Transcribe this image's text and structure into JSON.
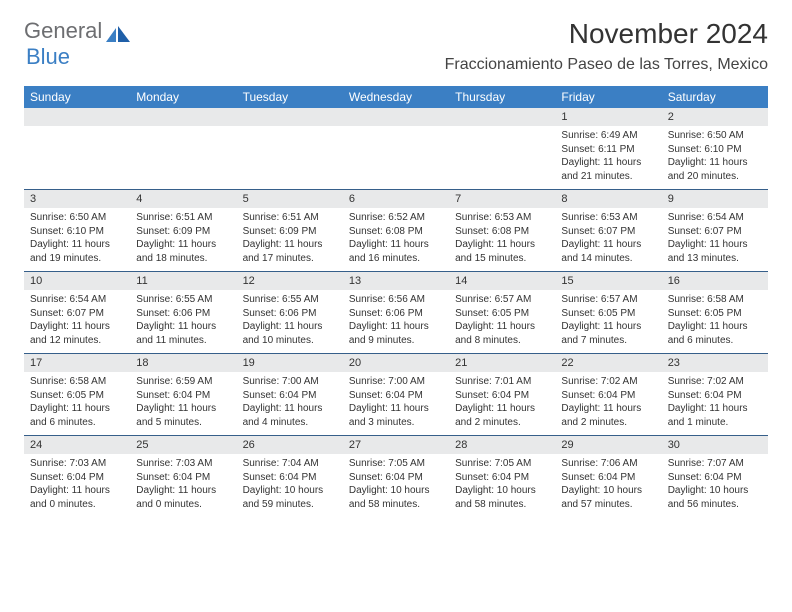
{
  "brand": {
    "gray": "General",
    "blue": "Blue"
  },
  "title": "November 2024",
  "location": "Fraccionamiento Paseo de las Torres, Mexico",
  "colors": {
    "headerBg": "#3b7fc4",
    "headerText": "#ffffff",
    "dayBarBg": "#e8e9ea",
    "dayBarBorder": "#365f8a",
    "bodyText": "#333333",
    "logoGray": "#6d6e71",
    "logoBlue": "#3b7fc4",
    "pageBg": "#ffffff"
  },
  "dayHeaders": [
    "Sunday",
    "Monday",
    "Tuesday",
    "Wednesday",
    "Thursday",
    "Friday",
    "Saturday"
  ],
  "weeks": [
    [
      null,
      null,
      null,
      null,
      null,
      {
        "n": "1",
        "sr": "6:49 AM",
        "ss": "6:11 PM",
        "dl": "11 hours and 21 minutes."
      },
      {
        "n": "2",
        "sr": "6:50 AM",
        "ss": "6:10 PM",
        "dl": "11 hours and 20 minutes."
      }
    ],
    [
      {
        "n": "3",
        "sr": "6:50 AM",
        "ss": "6:10 PM",
        "dl": "11 hours and 19 minutes."
      },
      {
        "n": "4",
        "sr": "6:51 AM",
        "ss": "6:09 PM",
        "dl": "11 hours and 18 minutes."
      },
      {
        "n": "5",
        "sr": "6:51 AM",
        "ss": "6:09 PM",
        "dl": "11 hours and 17 minutes."
      },
      {
        "n": "6",
        "sr": "6:52 AM",
        "ss": "6:08 PM",
        "dl": "11 hours and 16 minutes."
      },
      {
        "n": "7",
        "sr": "6:53 AM",
        "ss": "6:08 PM",
        "dl": "11 hours and 15 minutes."
      },
      {
        "n": "8",
        "sr": "6:53 AM",
        "ss": "6:07 PM",
        "dl": "11 hours and 14 minutes."
      },
      {
        "n": "9",
        "sr": "6:54 AM",
        "ss": "6:07 PM",
        "dl": "11 hours and 13 minutes."
      }
    ],
    [
      {
        "n": "10",
        "sr": "6:54 AM",
        "ss": "6:07 PM",
        "dl": "11 hours and 12 minutes."
      },
      {
        "n": "11",
        "sr": "6:55 AM",
        "ss": "6:06 PM",
        "dl": "11 hours and 11 minutes."
      },
      {
        "n": "12",
        "sr": "6:55 AM",
        "ss": "6:06 PM",
        "dl": "11 hours and 10 minutes."
      },
      {
        "n": "13",
        "sr": "6:56 AM",
        "ss": "6:06 PM",
        "dl": "11 hours and 9 minutes."
      },
      {
        "n": "14",
        "sr": "6:57 AM",
        "ss": "6:05 PM",
        "dl": "11 hours and 8 minutes."
      },
      {
        "n": "15",
        "sr": "6:57 AM",
        "ss": "6:05 PM",
        "dl": "11 hours and 7 minutes."
      },
      {
        "n": "16",
        "sr": "6:58 AM",
        "ss": "6:05 PM",
        "dl": "11 hours and 6 minutes."
      }
    ],
    [
      {
        "n": "17",
        "sr": "6:58 AM",
        "ss": "6:05 PM",
        "dl": "11 hours and 6 minutes."
      },
      {
        "n": "18",
        "sr": "6:59 AM",
        "ss": "6:04 PM",
        "dl": "11 hours and 5 minutes."
      },
      {
        "n": "19",
        "sr": "7:00 AM",
        "ss": "6:04 PM",
        "dl": "11 hours and 4 minutes."
      },
      {
        "n": "20",
        "sr": "7:00 AM",
        "ss": "6:04 PM",
        "dl": "11 hours and 3 minutes."
      },
      {
        "n": "21",
        "sr": "7:01 AM",
        "ss": "6:04 PM",
        "dl": "11 hours and 2 minutes."
      },
      {
        "n": "22",
        "sr": "7:02 AM",
        "ss": "6:04 PM",
        "dl": "11 hours and 2 minutes."
      },
      {
        "n": "23",
        "sr": "7:02 AM",
        "ss": "6:04 PM",
        "dl": "11 hours and 1 minute."
      }
    ],
    [
      {
        "n": "24",
        "sr": "7:03 AM",
        "ss": "6:04 PM",
        "dl": "11 hours and 0 minutes."
      },
      {
        "n": "25",
        "sr": "7:03 AM",
        "ss": "6:04 PM",
        "dl": "11 hours and 0 minutes."
      },
      {
        "n": "26",
        "sr": "7:04 AM",
        "ss": "6:04 PM",
        "dl": "10 hours and 59 minutes."
      },
      {
        "n": "27",
        "sr": "7:05 AM",
        "ss": "6:04 PM",
        "dl": "10 hours and 58 minutes."
      },
      {
        "n": "28",
        "sr": "7:05 AM",
        "ss": "6:04 PM",
        "dl": "10 hours and 58 minutes."
      },
      {
        "n": "29",
        "sr": "7:06 AM",
        "ss": "6:04 PM",
        "dl": "10 hours and 57 minutes."
      },
      {
        "n": "30",
        "sr": "7:07 AM",
        "ss": "6:04 PM",
        "dl": "10 hours and 56 minutes."
      }
    ]
  ],
  "labels": {
    "sunrise": "Sunrise: ",
    "sunset": "Sunset: ",
    "daylight": "Daylight: "
  }
}
